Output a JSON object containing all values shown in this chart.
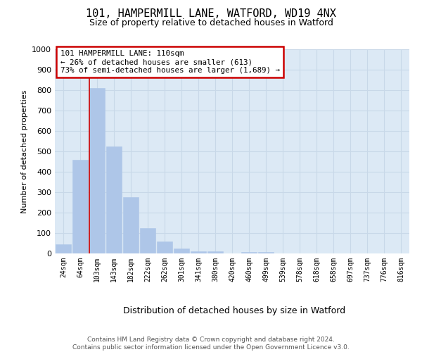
{
  "title": "101, HAMPERMILL LANE, WATFORD, WD19 4NX",
  "subtitle": "Size of property relative to detached houses in Watford",
  "xlabel": "Distribution of detached houses by size in Watford",
  "ylabel": "Number of detached properties",
  "categories": [
    "24sqm",
    "64sqm",
    "103sqm",
    "143sqm",
    "182sqm",
    "222sqm",
    "262sqm",
    "301sqm",
    "341sqm",
    "380sqm",
    "420sqm",
    "460sqm",
    "499sqm",
    "539sqm",
    "578sqm",
    "618sqm",
    "658sqm",
    "697sqm",
    "737sqm",
    "776sqm",
    "816sqm"
  ],
  "values": [
    45,
    460,
    810,
    525,
    275,
    125,
    60,
    25,
    12,
    12,
    0,
    8,
    8,
    0,
    0,
    0,
    0,
    0,
    0,
    0,
    0
  ],
  "bar_color": "#aec6e8",
  "bar_edge_color": "#aec6e8",
  "vline_x": 1.55,
  "vline_color": "#cc0000",
  "ylim": [
    0,
    1000
  ],
  "yticks": [
    0,
    100,
    200,
    300,
    400,
    500,
    600,
    700,
    800,
    900,
    1000
  ],
  "annotation_text": "101 HAMPERMILL LANE: 110sqm\n← 26% of detached houses are smaller (613)\n73% of semi-detached houses are larger (1,689) →",
  "annotation_box_color": "#ffffff",
  "annotation_box_edge_color": "#cc0000",
  "grid_color": "#c8d8e8",
  "plot_bg_color": "#dce9f5",
  "fig_bg_color": "#ffffff",
  "footer_text": "Contains HM Land Registry data © Crown copyright and database right 2024.\nContains public sector information licensed under the Open Government Licence v3.0."
}
